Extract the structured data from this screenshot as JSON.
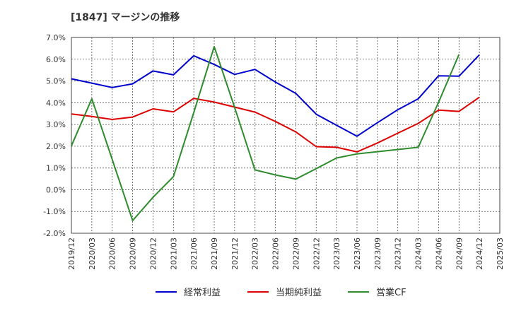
{
  "chart_data": {
    "type": "line",
    "title": "[1847]  マージンの推移",
    "x": [
      "2019/12",
      "2020/03",
      "2020/06",
      "2020/09",
      "2020/12",
      "2021/03",
      "2021/06",
      "2021/09",
      "2021/12",
      "2022/03",
      "2022/06",
      "2022/09",
      "2022/12",
      "2023/03",
      "2023/06",
      "2023/09",
      "2023/12",
      "2024/03",
      "2024/06",
      "2024/09",
      "2024/12",
      "2025/03"
    ],
    "y_ticks": [
      "-2.0%",
      "-1.0%",
      "0.0%",
      "1.0%",
      "2.0%",
      "3.0%",
      "4.0%",
      "5.0%",
      "6.0%",
      "7.0%"
    ],
    "ylim": [
      -2.0,
      7.0
    ],
    "grid": true,
    "legend_position": "bottom",
    "series": [
      {
        "name": "経常利益",
        "color": "#0000cc",
        "values": [
          5.1,
          4.9,
          4.7,
          4.87,
          5.46,
          5.28,
          6.16,
          5.76,
          5.3,
          5.53,
          4.95,
          4.43,
          3.47,
          2.96,
          2.46,
          3.08,
          3.68,
          4.18,
          5.24,
          5.22,
          6.2,
          null
        ]
      },
      {
        "name": "当期純利益",
        "color": "#dd0000",
        "values": [
          3.48,
          3.37,
          3.23,
          3.34,
          3.72,
          3.58,
          4.2,
          4.03,
          3.8,
          3.57,
          3.14,
          2.66,
          1.98,
          1.95,
          1.74,
          2.15,
          2.6,
          3.05,
          3.66,
          3.6,
          4.25,
          null
        ]
      },
      {
        "name": "営業CF",
        "color": "#2e8b2e",
        "values": [
          2.02,
          4.18,
          1.4,
          -1.42,
          -0.35,
          0.6,
          3.55,
          6.58,
          3.78,
          0.91,
          0.68,
          0.49,
          0.97,
          1.46,
          1.65,
          1.75,
          1.85,
          1.95,
          4.02,
          6.22,
          null,
          null
        ]
      }
    ]
  }
}
